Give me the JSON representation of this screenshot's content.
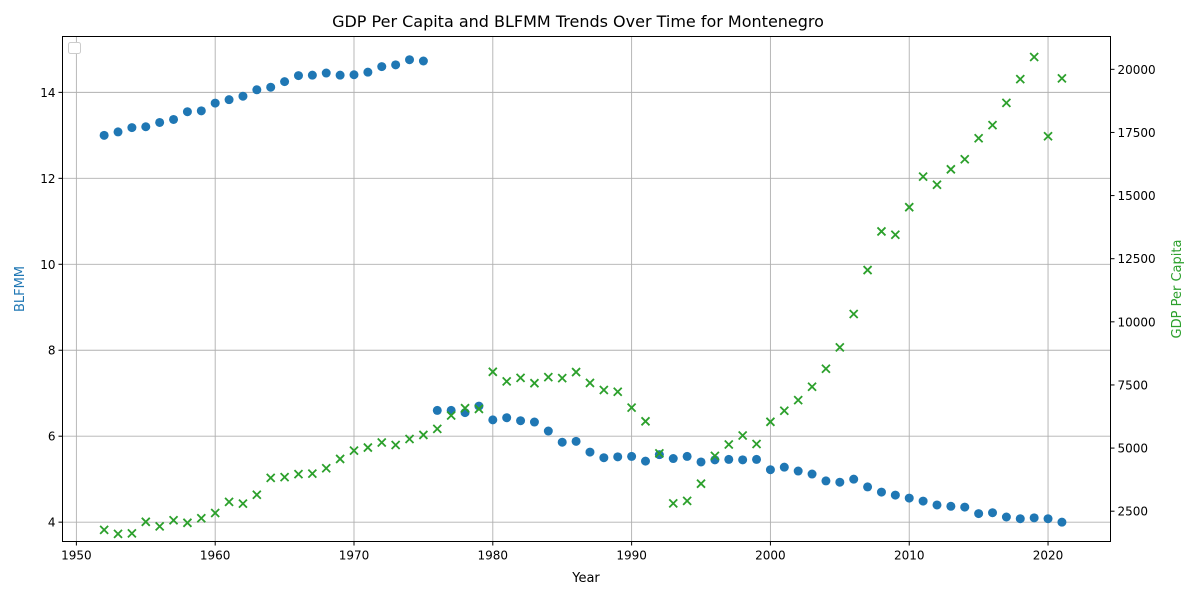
{
  "chart_data": {
    "type": "scatter",
    "title": "GDP Per Capita and BLFMM Trends Over Time for Montenegro",
    "xlabel": "Year",
    "ylabel_left": "BLFMM",
    "ylabel_right": "GDP Per Capita",
    "xlim": [
      1949,
      2024.5
    ],
    "ylim_left": [
      3.55,
      15.3
    ],
    "ylim_right": [
      1300,
      21300
    ],
    "x_ticks": [
      1950,
      1960,
      1970,
      1980,
      1990,
      2000,
      2010,
      2020
    ],
    "y_left_ticks": [
      4,
      6,
      8,
      10,
      12,
      14
    ],
    "y_right_ticks": [
      2500,
      5000,
      7500,
      10000,
      12500,
      15000,
      17500,
      20000
    ],
    "grid": true,
    "legend": "top-left (empty)",
    "colors": {
      "blfmm": "#1f77b4",
      "gdp": "#2ca02c"
    },
    "series": [
      {
        "name": "BLFMM",
        "axis": "left",
        "marker": "circle",
        "x": [
          1952,
          1953,
          1954,
          1955,
          1956,
          1957,
          1958,
          1959,
          1960,
          1961,
          1962,
          1963,
          1964,
          1965,
          1966,
          1967,
          1968,
          1969,
          1970,
          1971,
          1972,
          1973,
          1974,
          1975,
          1976,
          1977,
          1978,
          1979,
          1980,
          1981,
          1982,
          1983,
          1984,
          1985,
          1986,
          1987,
          1988,
          1989,
          1990,
          1991,
          1992,
          1993,
          1994,
          1995,
          1996,
          1997,
          1998,
          1999,
          2000,
          2001,
          2002,
          2003,
          2004,
          2005,
          2006,
          2007,
          2008,
          2009,
          2010,
          2011,
          2012,
          2013,
          2014,
          2015,
          2016,
          2017,
          2018,
          2019,
          2020,
          2021
        ],
        "values": [
          13.0,
          13.08,
          13.18,
          13.2,
          13.3,
          13.37,
          13.55,
          13.57,
          13.75,
          13.83,
          13.91,
          14.06,
          14.12,
          14.25,
          14.39,
          14.4,
          14.45,
          14.4,
          14.41,
          14.47,
          14.6,
          14.64,
          14.76,
          14.73,
          6.6,
          6.6,
          6.55,
          6.7,
          6.38,
          6.43,
          6.36,
          6.33,
          6.12,
          5.86,
          5.88,
          5.63,
          5.5,
          5.52,
          5.53,
          5.42,
          5.57,
          5.48,
          5.53,
          5.4,
          5.45,
          5.46,
          5.45,
          5.46,
          5.22,
          5.28,
          5.19,
          5.12,
          4.96,
          4.93,
          5.0,
          4.82,
          4.7,
          4.63,
          4.56,
          4.49,
          4.4,
          4.37,
          4.35,
          4.2,
          4.22,
          4.12,
          4.08,
          4.1,
          4.08,
          4.0
        ]
      },
      {
        "name": "GDP Per Capita",
        "axis": "right",
        "marker": "x",
        "x": [
          1952,
          1953,
          1954,
          1955,
          1956,
          1957,
          1958,
          1959,
          1960,
          1961,
          1962,
          1963,
          1964,
          1965,
          1966,
          1967,
          1968,
          1969,
          1970,
          1971,
          1972,
          1973,
          1974,
          1975,
          1976,
          1977,
          1978,
          1979,
          1980,
          1981,
          1982,
          1983,
          1984,
          1985,
          1986,
          1987,
          1988,
          1989,
          1990,
          1991,
          1992,
          1993,
          1994,
          1995,
          1996,
          1997,
          1998,
          1999,
          2000,
          2001,
          2002,
          2003,
          2004,
          2005,
          2006,
          2007,
          2008,
          2009,
          2010,
          2011,
          2012,
          2013,
          2014,
          2015,
          2016,
          2017,
          2018,
          2019,
          2020,
          2021
        ],
        "values": [
          1760,
          1600,
          1620,
          2080,
          1900,
          2140,
          2040,
          2220,
          2430,
          2870,
          2800,
          3150,
          3820,
          3850,
          3970,
          3990,
          4200,
          4570,
          4900,
          5020,
          5220,
          5120,
          5360,
          5520,
          5760,
          6290,
          6580,
          6550,
          8020,
          7640,
          7780,
          7570,
          7810,
          7770,
          8010,
          7580,
          7300,
          7230,
          6600,
          6060,
          4790,
          2810,
          2910,
          3590,
          4690,
          5140,
          5500,
          5160,
          6040,
          6480,
          6900,
          7430,
          8140,
          8990,
          10310,
          12050,
          13580,
          13450,
          14540,
          15750,
          15430,
          16040,
          16440,
          17270,
          17790,
          18670,
          19610,
          20490,
          17350,
          19640
        ]
      }
    ]
  }
}
